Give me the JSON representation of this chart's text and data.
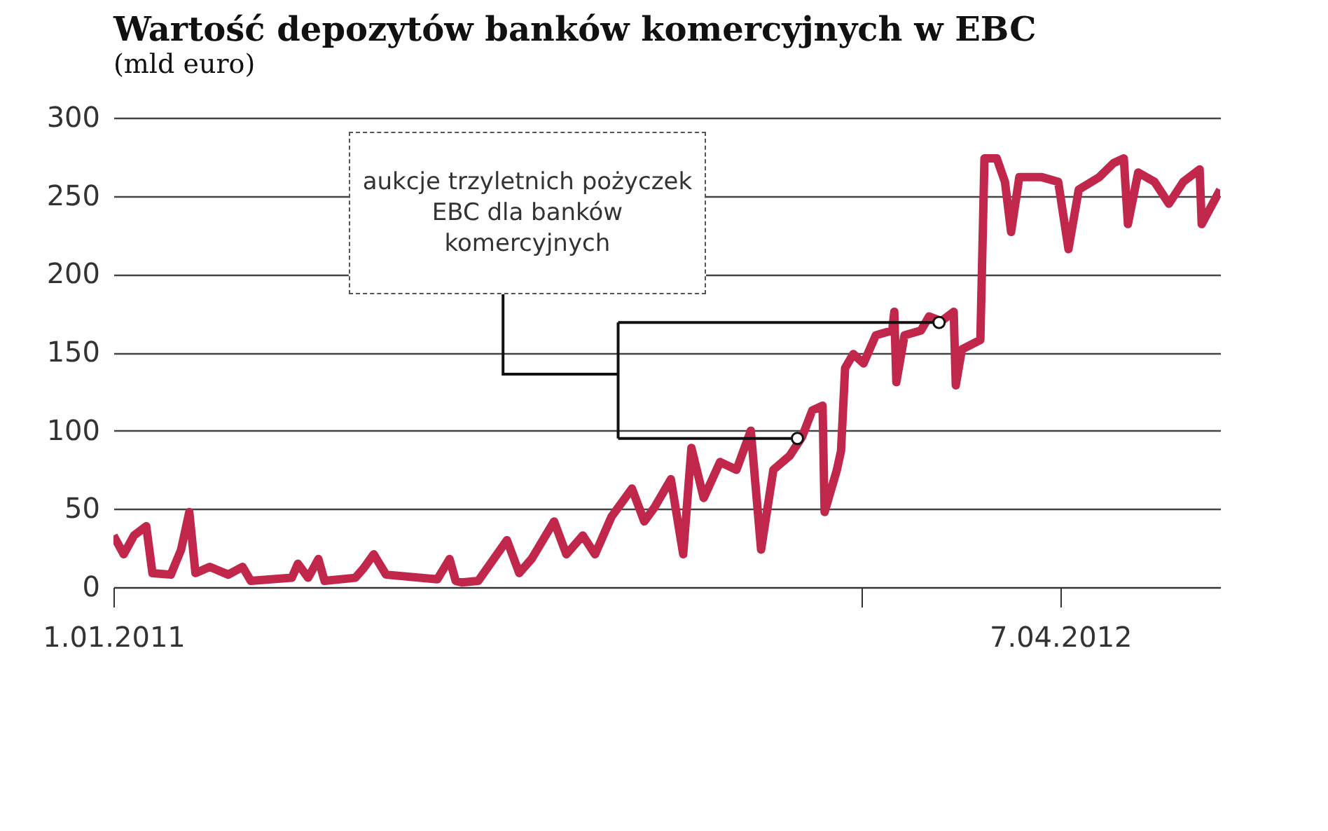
{
  "chart_data": {
    "type": "line",
    "title": "Wartość depozytów banków komercyjnych w EBC",
    "subtitle": "(mld euro)",
    "annotations": [
      "aukcje trzyletnich pożyczek EBC dla banków komercyjnych"
    ],
    "color": "#c1274b",
    "grid": "y",
    "xlim": [
      "2011-01-01",
      "2012-06-24"
    ],
    "xticks": [
      {
        "value": "2011-01-01",
        "label": "1.01.2011"
      },
      {
        "value": "2012-01-01",
        "label": null
      },
      {
        "value": "2012-04-07",
        "label": "7.04.2012"
      }
    ],
    "ylim": [
      0,
      300
    ],
    "yticks": [
      0,
      50,
      100,
      150,
      200,
      250,
      300
    ],
    "x": [
      "2011-01-01",
      "2011-01-06",
      "2011-01-11",
      "2011-01-17",
      "2011-01-20",
      "2011-01-29",
      "2011-02-03",
      "2011-02-07",
      "2011-02-10",
      "2011-02-17",
      "2011-02-26",
      "2011-03-05",
      "2011-03-09",
      "2011-03-29",
      "2011-04-01",
      "2011-04-06",
      "2011-04-11",
      "2011-04-14",
      "2011-04-29",
      "2011-05-03",
      "2011-05-08",
      "2011-05-14",
      "2011-06-08",
      "2011-06-14",
      "2011-06-17",
      "2011-06-20",
      "2011-06-28",
      "2011-07-12",
      "2011-07-18",
      "2011-07-24",
      "2011-08-04",
      "2011-08-10",
      "2011-08-18",
      "2011-08-24",
      "2011-09-01",
      "2011-09-11",
      "2011-09-17",
      "2011-09-22",
      "2011-09-30",
      "2011-10-06",
      "2011-10-10",
      "2011-10-16",
      "2011-10-24",
      "2011-11-01",
      "2011-11-08",
      "2011-11-13",
      "2011-11-19",
      "2011-11-27",
      "2011-12-03",
      "2011-12-08",
      "2011-12-13",
      "2011-12-14",
      "2011-12-20",
      "2011-12-22",
      "2011-12-24",
      "2011-12-28",
      "2012-01-02",
      "2012-01-08",
      "2012-01-16",
      "2012-01-17",
      "2012-01-18",
      "2012-01-22",
      "2012-01-30",
      "2012-02-03",
      "2012-02-09",
      "2012-02-15",
      "2012-02-16",
      "2012-02-19",
      "2012-02-28",
      "2012-03-01",
      "2012-03-07",
      "2012-03-11",
      "2012-03-14",
      "2012-03-18",
      "2012-03-29",
      "2012-04-06",
      "2012-04-11",
      "2012-04-16",
      "2012-04-26",
      "2012-05-03",
      "2012-05-08",
      "2012-05-10",
      "2012-05-15",
      "2012-05-23",
      "2012-05-30",
      "2012-06-06",
      "2012-06-14",
      "2012-06-15",
      "2012-06-24"
    ],
    "values": [
      33,
      21,
      33,
      39,
      9,
      8,
      24,
      48,
      9,
      13,
      8,
      13,
      4,
      6,
      15,
      6,
      18,
      4,
      6,
      12,
      21,
      8,
      5,
      18,
      4,
      3,
      4,
      30,
      9,
      18,
      42,
      21,
      33,
      21,
      45,
      63,
      42,
      51,
      69,
      21,
      89,
      57,
      80,
      75,
      100,
      24,
      75,
      84,
      96,
      113,
      116,
      48,
      75,
      87,
      140,
      149,
      143,
      161,
      164,
      176,
      131,
      161,
      164,
      173,
      170,
      176,
      129,
      152,
      158,
      274,
      274,
      259,
      227,
      262,
      262,
      259,
      216,
      254,
      262,
      271,
      274,
      232,
      265,
      259,
      245,
      259,
      267,
      232,
      254
    ]
  }
}
